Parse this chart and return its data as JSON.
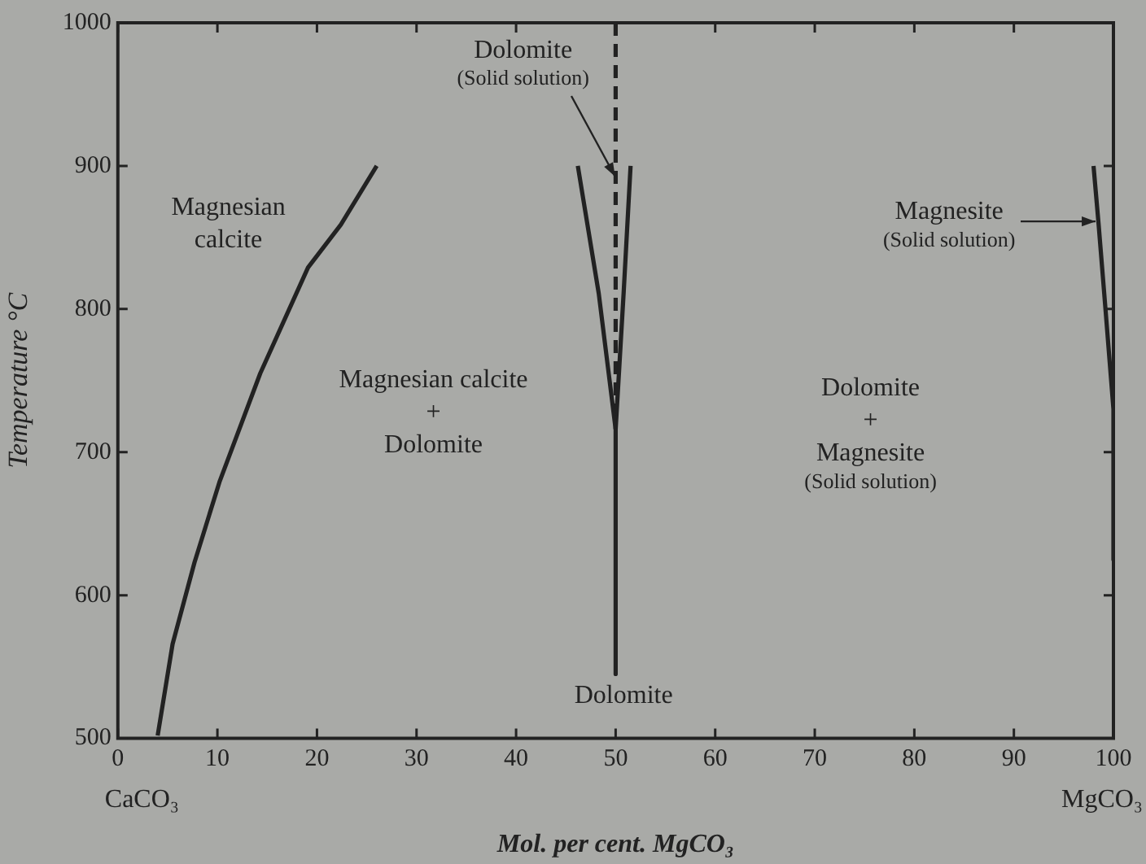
{
  "chart_data": {
    "type": "line",
    "xlabel": "Mol. per cent. MgCO₃",
    "ylabel": "Temperature °C",
    "xlim": [
      0,
      100
    ],
    "xticks": [
      0,
      10,
      20,
      30,
      40,
      50,
      60,
      70,
      80,
      90,
      100
    ],
    "ylim": [
      500,
      1000
    ],
    "yticks": [
      500,
      600,
      700,
      800,
      900,
      1000
    ],
    "grid": false,
    "legend": false,
    "marker": "none",
    "series": [
      {
        "color": "#222222",
        "x": [
          4,
          5.5,
          7.7,
          10.2,
          14.3,
          19.1,
          22.4,
          26
        ],
        "values": [
          502,
          566,
          623,
          679,
          755,
          829,
          859,
          900
        ]
      },
      {
        "color": "#222222",
        "x": [
          46.2,
          48.3,
          50,
          50
        ],
        "values": [
          900,
          811,
          716,
          545
        ]
      },
      {
        "color": "#222222",
        "x": [
          51.5,
          50.8,
          50
        ],
        "values": [
          900,
          811,
          716
        ]
      },
      {
        "color": "#222222",
        "x": [
          50,
          50
        ],
        "values": [
          1000,
          716
        ],
        "line_style": "dashed"
      },
      {
        "color": "#222222",
        "x": [
          98,
          98.5,
          99.2,
          100,
          100
        ],
        "values": [
          900,
          860,
          800,
          730,
          625
        ]
      }
    ],
    "annotations": [
      "Magnesian\ncalcite",
      "Magnesian calcite\n+\nDolomite",
      {
        "text": "Dolomite\n(Solid solution)",
        "x": 50,
        "y": 893
      },
      "Dolomite",
      "Dolomite\n+\nMagnesite\n(Solid solution)",
      "Magnesite\n(Solid solution)",
      "CaCO₃",
      "MgCO₃"
    ]
  }
}
